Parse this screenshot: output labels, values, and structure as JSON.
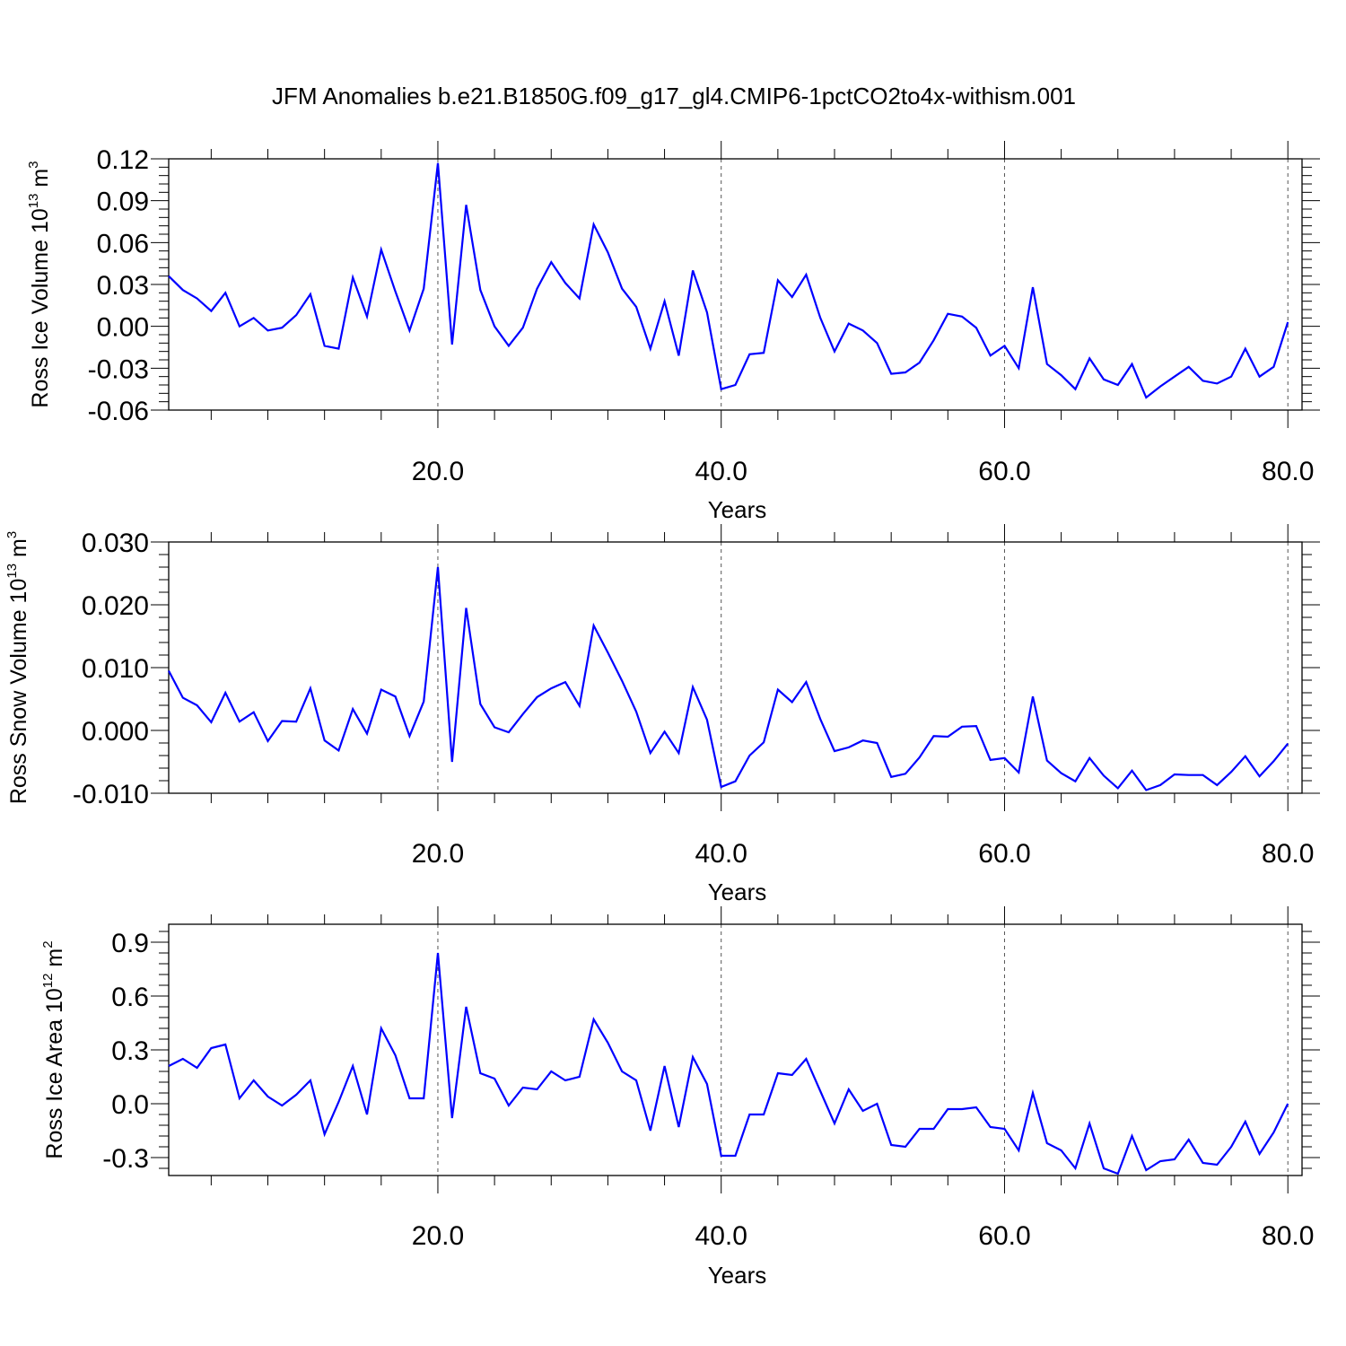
{
  "title": "JFM Anomalies b.e21.B1850G.f09_g17_gl4.CMIP6-1pctCO2to4x-withism.001",
  "line_color": "#0000ff",
  "chart_data": [
    {
      "type": "line",
      "ylabel": {
        "prefix": "Ross Ice Volume 10",
        "exp": "13",
        "unit": " m",
        "unit_exp": "3"
      },
      "xlabel": "Years",
      "xlim": [
        1,
        81
      ],
      "ylim": [
        -0.06,
        0.12
      ],
      "yticks": [
        -0.06,
        -0.03,
        0.0,
        0.03,
        0.06,
        0.09,
        0.12
      ],
      "ytick_labels": [
        "-0.06",
        "-0.03",
        "0.00",
        "0.03",
        "0.06",
        "0.09",
        "0.12"
      ],
      "xticks": [
        20,
        40,
        60,
        80
      ],
      "xtick_labels": [
        "20.0",
        "40.0",
        "60.0",
        "80.0"
      ],
      "x_start": 1,
      "values": [
        0.036,
        0.026,
        0.02,
        0.011,
        0.024,
        0.0,
        0.006,
        -0.003,
        -0.001,
        0.008,
        0.023,
        -0.014,
        -0.016,
        0.035,
        0.007,
        0.055,
        0.025,
        -0.003,
        0.027,
        0.117,
        -0.013,
        0.087,
        0.026,
        0.0,
        -0.014,
        -0.001,
        0.027,
        0.046,
        0.031,
        0.02,
        0.073,
        0.053,
        0.027,
        0.014,
        -0.016,
        0.018,
        -0.021,
        0.04,
        0.01,
        -0.045,
        -0.042,
        -0.02,
        -0.019,
        0.033,
        0.021,
        0.037,
        0.006,
        -0.018,
        0.002,
        -0.003,
        -0.012,
        -0.034,
        -0.033,
        -0.026,
        -0.01,
        0.009,
        0.007,
        -0.001,
        -0.021,
        -0.014,
        -0.03,
        0.028,
        -0.027,
        -0.035,
        -0.045,
        -0.023,
        -0.038,
        -0.042,
        -0.027,
        -0.051,
        -0.043,
        -0.036,
        -0.029,
        -0.039,
        -0.041,
        -0.036,
        -0.016,
        -0.036,
        -0.029,
        0.003
      ]
    },
    {
      "type": "line",
      "ylabel": {
        "prefix": "Ross Snow Volume 10",
        "exp": "13",
        "unit": " m",
        "unit_exp": "3"
      },
      "xlabel": "Years",
      "xlim": [
        1,
        81
      ],
      "ylim": [
        -0.01,
        0.03
      ],
      "yticks": [
        -0.01,
        0.0,
        0.01,
        0.02,
        0.03
      ],
      "ytick_labels": [
        "-0.010",
        "0.000",
        "0.010",
        "0.020",
        "0.030"
      ],
      "xticks": [
        20,
        40,
        60,
        80
      ],
      "xtick_labels": [
        "20.0",
        "40.0",
        "60.0",
        "80.0"
      ],
      "x_start": 1,
      "values": [
        0.0095,
        0.0052,
        0.004,
        0.0013,
        0.006,
        0.0014,
        0.0029,
        -0.0017,
        0.0015,
        0.0014,
        0.0067,
        -0.0016,
        -0.0032,
        0.0034,
        -0.0005,
        0.0065,
        0.0054,
        -0.0009,
        0.0046,
        0.026,
        -0.005,
        0.0195,
        0.0042,
        0.0005,
        -0.0003,
        0.0026,
        0.0053,
        0.0067,
        0.0077,
        0.0039,
        0.0167,
        0.0124,
        0.0079,
        0.003,
        -0.0036,
        -0.0002,
        -0.0036,
        0.0069,
        0.0017,
        -0.009,
        -0.0081,
        -0.004,
        -0.0019,
        0.0065,
        0.0045,
        0.0077,
        0.0018,
        -0.0033,
        -0.0027,
        -0.0016,
        -0.002,
        -0.0074,
        -0.0069,
        -0.0043,
        -0.0009,
        -0.001,
        0.0006,
        0.0007,
        -0.0047,
        -0.0044,
        -0.0067,
        0.0054,
        -0.0048,
        -0.0068,
        -0.0081,
        -0.0044,
        -0.0072,
        -0.0092,
        -0.0064,
        -0.0095,
        -0.0087,
        -0.007,
        -0.0071,
        -0.0071,
        -0.0087,
        -0.0066,
        -0.0041,
        -0.0073,
        -0.0049,
        -0.0021
      ]
    },
    {
      "type": "line",
      "ylabel": {
        "prefix": "Ross Ice Area 10",
        "exp": "12",
        "unit": " m",
        "unit_exp": "2"
      },
      "xlabel": "Years",
      "xlim": [
        1,
        81
      ],
      "ylim": [
        -0.4,
        1.0
      ],
      "yticks": [
        -0.3,
        0.0,
        0.3,
        0.6,
        0.9
      ],
      "ytick_labels": [
        "-0.3",
        "0.0",
        "0.3",
        "0.6",
        "0.9"
      ],
      "xticks": [
        20,
        40,
        60,
        80
      ],
      "xtick_labels": [
        "20.0",
        "40.0",
        "60.0",
        "80.0"
      ],
      "x_start": 1,
      "values": [
        0.21,
        0.25,
        0.2,
        0.31,
        0.33,
        0.03,
        0.13,
        0.04,
        -0.01,
        0.05,
        0.13,
        -0.17,
        0.01,
        0.21,
        -0.06,
        0.42,
        0.27,
        0.03,
        0.03,
        0.84,
        -0.08,
        0.54,
        0.17,
        0.14,
        -0.01,
        0.09,
        0.08,
        0.18,
        0.13,
        0.15,
        0.47,
        0.34,
        0.18,
        0.13,
        -0.15,
        0.21,
        -0.13,
        0.26,
        0.11,
        -0.29,
        -0.29,
        -0.06,
        -0.06,
        0.17,
        0.16,
        0.25,
        0.07,
        -0.11,
        0.08,
        -0.04,
        0.0,
        -0.23,
        -0.24,
        -0.14,
        -0.14,
        -0.03,
        -0.03,
        -0.02,
        -0.13,
        -0.14,
        -0.26,
        0.06,
        -0.22,
        -0.26,
        -0.36,
        -0.11,
        -0.36,
        -0.39,
        -0.18,
        -0.37,
        -0.32,
        -0.31,
        -0.2,
        -0.33,
        -0.34,
        -0.24,
        -0.1,
        -0.28,
        -0.16,
        0.0
      ]
    }
  ]
}
